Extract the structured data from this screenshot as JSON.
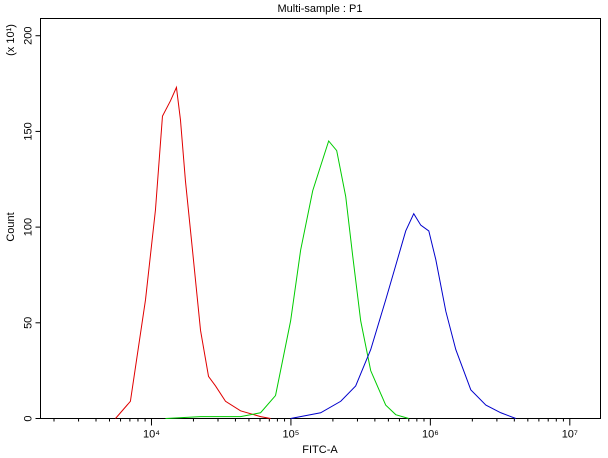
{
  "chart_data": {
    "type": "line",
    "title": "Multi-sample : P1",
    "x_label": "FITC-A",
    "y_label": "Count",
    "y_multiplier": "(x 10¹)",
    "xscale": "log",
    "xlim": [
      1600,
      16600000
    ],
    "ylim": [
      0,
      209
    ],
    "xticks": [
      {
        "value": 10000,
        "label": "10⁴"
      },
      {
        "value": 100000,
        "label": "10⁵"
      },
      {
        "value": 1000000,
        "label": "10⁶"
      },
      {
        "value": 10000000,
        "label": "10⁷"
      }
    ],
    "xminorticks": [
      2000,
      3000,
      4000,
      5000,
      6000,
      7000,
      8000,
      9000,
      20000,
      30000,
      40000,
      50000,
      60000,
      70000,
      80000,
      90000,
      200000,
      300000,
      400000,
      500000,
      600000,
      700000,
      800000,
      900000,
      2000000,
      3000000,
      4000000,
      5000000,
      6000000,
      7000000,
      8000000,
      9000000
    ],
    "yticks": [
      0,
      50,
      100,
      150,
      200
    ],
    "series": [
      {
        "color": "#e00000",
        "x": [
          5520,
          7060,
          9060,
          10680,
          11990,
          13680,
          15100,
          16140,
          17530,
          19680,
          22480,
          25650,
          28790,
          33950,
          43520,
          60570,
          71450
        ],
        "values": [
          0,
          9,
          62,
          109,
          158,
          166,
          173,
          156,
          124,
          88,
          46,
          22,
          17,
          9,
          4,
          1,
          0
        ]
      },
      {
        "color": "#00cc00",
        "x": [
          12600,
          22480,
          43520,
          60570,
          77560,
          99500,
          117400,
          143300,
          163400,
          186500,
          212900,
          247100,
          277300,
          316500,
          373400,
          478300,
          564500,
          699800
        ],
        "values": [
          0,
          1,
          1,
          3,
          12,
          51,
          88,
          119,
          132,
          145,
          140,
          116,
          85,
          51,
          25,
          7,
          2,
          0
        ]
      },
      {
        "color": "#0000cc",
        "x": [
          99500,
          163400,
          227700,
          291300,
          373400,
          478300,
          564500,
          665700,
          760100,
          853700,
          974500,
          1094000,
          1291000,
          1522000,
          1950000,
          2500000,
          3200000,
          4100000
        ],
        "values": [
          0,
          3,
          9,
          17,
          36,
          62,
          80,
          98,
          107,
          101,
          98,
          83,
          56,
          36,
          15,
          7,
          3,
          0
        ]
      }
    ]
  }
}
